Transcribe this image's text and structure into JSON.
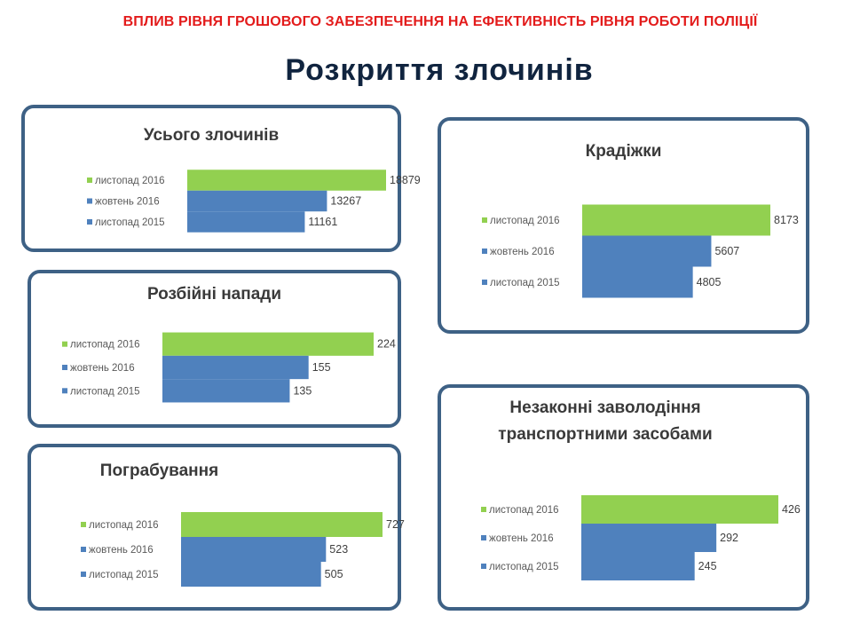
{
  "header": {
    "top_title": "ВПЛИВ РІВНЯ ГРОШОВОГО ЗАБЕЗПЕЧЕННЯ НА ЕФЕКТИВНІСТЬ РІВНЯ РОБОТИ ПОЛІЦІЇ",
    "main_title": "Розкриття злочинів"
  },
  "colors": {
    "green": "#92d050",
    "blue": "#4f81bd",
    "border": "#3e6185"
  },
  "chart_data": [
    {
      "type": "bar",
      "orientation": "horizontal",
      "title": "Усього злочинів",
      "categories": [
        "листопад 2016",
        "жовтень 2016",
        "листопад 2015"
      ],
      "values": [
        18879,
        13267,
        11161
      ],
      "colors": [
        "#92d050",
        "#4f81bd",
        "#4f81bd"
      ]
    },
    {
      "type": "bar",
      "orientation": "horizontal",
      "title": "Крадіжки",
      "categories": [
        "листопад 2016",
        "жовтень 2016",
        "листопад 2015"
      ],
      "values": [
        8173,
        5607,
        4805
      ],
      "colors": [
        "#92d050",
        "#4f81bd",
        "#4f81bd"
      ]
    },
    {
      "type": "bar",
      "orientation": "horizontal",
      "title": "Розбійні напади",
      "categories": [
        "листопад 2016",
        "жовтень 2016",
        "листопад 2015"
      ],
      "values": [
        224,
        155,
        135
      ],
      "colors": [
        "#92d050",
        "#4f81bd",
        "#4f81bd"
      ]
    },
    {
      "type": "bar",
      "orientation": "horizontal",
      "title": "Незаконні заволодіння транспортними засобами",
      "title_lines": [
        "Незаконні заволодіння",
        "транспортними засобами"
      ],
      "categories": [
        "листопад 2016",
        "жовтень 2016",
        "листопад 2015"
      ],
      "values": [
        426,
        292,
        245
      ],
      "colors": [
        "#92d050",
        "#4f81bd",
        "#4f81bd"
      ]
    },
    {
      "type": "bar",
      "orientation": "horizontal",
      "title": "Пограбування",
      "categories": [
        "листопад 2016",
        "жовтень 2016",
        "листопад 2015"
      ],
      "values": [
        727,
        523,
        505
      ],
      "colors": [
        "#92d050",
        "#4f81bd",
        "#4f81bd"
      ]
    }
  ]
}
